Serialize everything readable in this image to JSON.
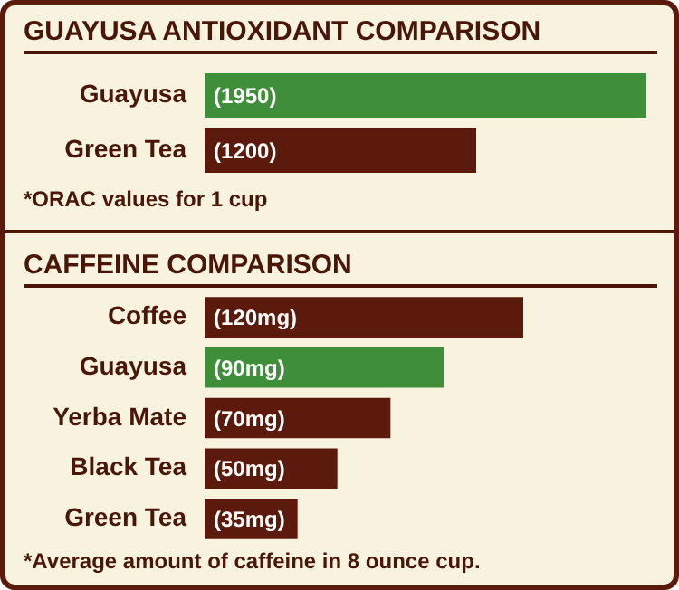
{
  "chart_data": [
    {
      "type": "bar",
      "orientation": "horizontal",
      "title": "GUAYUSA ANTIOXIDANT COMPARISON",
      "categories": [
        "Guayusa",
        "Green Tea"
      ],
      "values": [
        1950,
        1200
      ],
      "colors": [
        "#3f8f3a",
        "#5b1a0c"
      ],
      "value_labels": [
        "(1950)",
        "(1200)"
      ],
      "annotations": [
        "*ORAC values for 1 cup"
      ],
      "tick_labels": "y",
      "grid": false,
      "legend": false
    },
    {
      "type": "bar",
      "orientation": "horizontal",
      "title": "CAFFEINE COMPARISON",
      "categories": [
        "Coffee",
        "Guayusa",
        "Yerba Mate",
        "Black Tea",
        "Green Tea"
      ],
      "values": [
        120,
        90,
        70,
        50,
        35
      ],
      "colors": [
        "#5b1a0c",
        "#3f8f3a",
        "#5b1a0c",
        "#5b1a0c",
        "#5b1a0c"
      ],
      "value_labels": [
        "(120mg)",
        "(90mg)",
        "(70mg)",
        "(50mg)",
        "(35mg)"
      ],
      "annotations": [
        "*Average amount of caffeine in 8 ounce cup."
      ],
      "tick_labels": "y",
      "grid": false,
      "legend": false
    }
  ]
}
